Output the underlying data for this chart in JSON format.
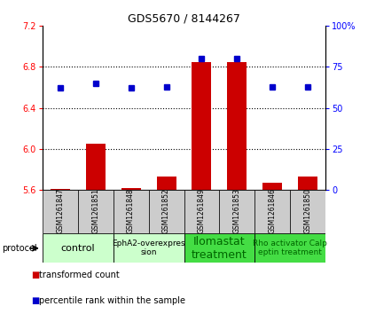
{
  "title": "GDS5670 / 8144267",
  "samples": [
    "GSM1261847",
    "GSM1261851",
    "GSM1261848",
    "GSM1261852",
    "GSM1261849",
    "GSM1261853",
    "GSM1261846",
    "GSM1261850"
  ],
  "transformed_counts": [
    5.61,
    6.05,
    5.62,
    5.73,
    6.85,
    6.85,
    5.67,
    5.73
  ],
  "percentile_ranks": [
    62,
    65,
    62,
    63,
    80,
    80,
    63,
    63
  ],
  "ylim_left": [
    5.6,
    7.2
  ],
  "ylim_right": [
    0,
    100
  ],
  "yticks_left": [
    5.6,
    6.0,
    6.4,
    6.8,
    7.2
  ],
  "yticks_right": [
    0,
    25,
    50,
    75,
    100
  ],
  "bar_color": "#cc0000",
  "dot_color": "#0000cc",
  "bar_bottom": 5.6,
  "protocols": [
    {
      "label": "control",
      "samples": [
        0,
        1
      ],
      "color": "#ccffcc",
      "text_color": "#000000",
      "fontsize": 8
    },
    {
      "label": "EphA2-overexpres\nsion",
      "samples": [
        2,
        3
      ],
      "color": "#ccffcc",
      "text_color": "#000000",
      "fontsize": 6.5
    },
    {
      "label": "Ilomastat\ntreatment",
      "samples": [
        4,
        5
      ],
      "color": "#44dd44",
      "text_color": "#006600",
      "fontsize": 9
    },
    {
      "label": "Rho activator Calp\neptin treatment",
      "samples": [
        6,
        7
      ],
      "color": "#44dd44",
      "text_color": "#006600",
      "fontsize": 6.5
    }
  ],
  "bg_color": "#ffffff",
  "sample_bg_color": "#cccccc",
  "legend_bar_label": "transformed count",
  "legend_dot_label": "percentile rank within the sample",
  "protocol_label": "protocol"
}
